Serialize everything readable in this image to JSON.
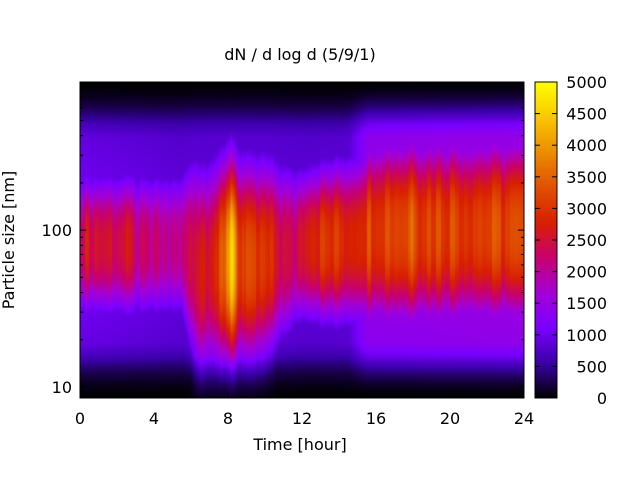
{
  "chart_data": {
    "type": "heatmap",
    "title": "dN / d log d (5/9/1)",
    "xlabel": "Time [hour]",
    "ylabel": "Particle size [nm]",
    "xlim": [
      0,
      24
    ],
    "ylim": [
      8.5,
      880
    ],
    "yscale": "log",
    "x_ticks": [
      "0",
      "4",
      "8",
      "12",
      "16",
      "20",
      "24"
    ],
    "y_ticks": [
      "10",
      "100"
    ],
    "colorbar": {
      "range": [
        0,
        5000
      ],
      "ticks": [
        "0",
        "500",
        "1000",
        "1500",
        "2000",
        "2500",
        "3000",
        "3500",
        "4000",
        "4500",
        "5000"
      ],
      "palette": [
        "#000000",
        "#3a00a8",
        "#7a00ff",
        "#a300d6",
        "#c8006e",
        "#d82000",
        "#e05000",
        "#ec8c00",
        "#f8c800",
        "#ffff00"
      ]
    },
    "grid": false,
    "legend": "colorbar-right"
  }
}
